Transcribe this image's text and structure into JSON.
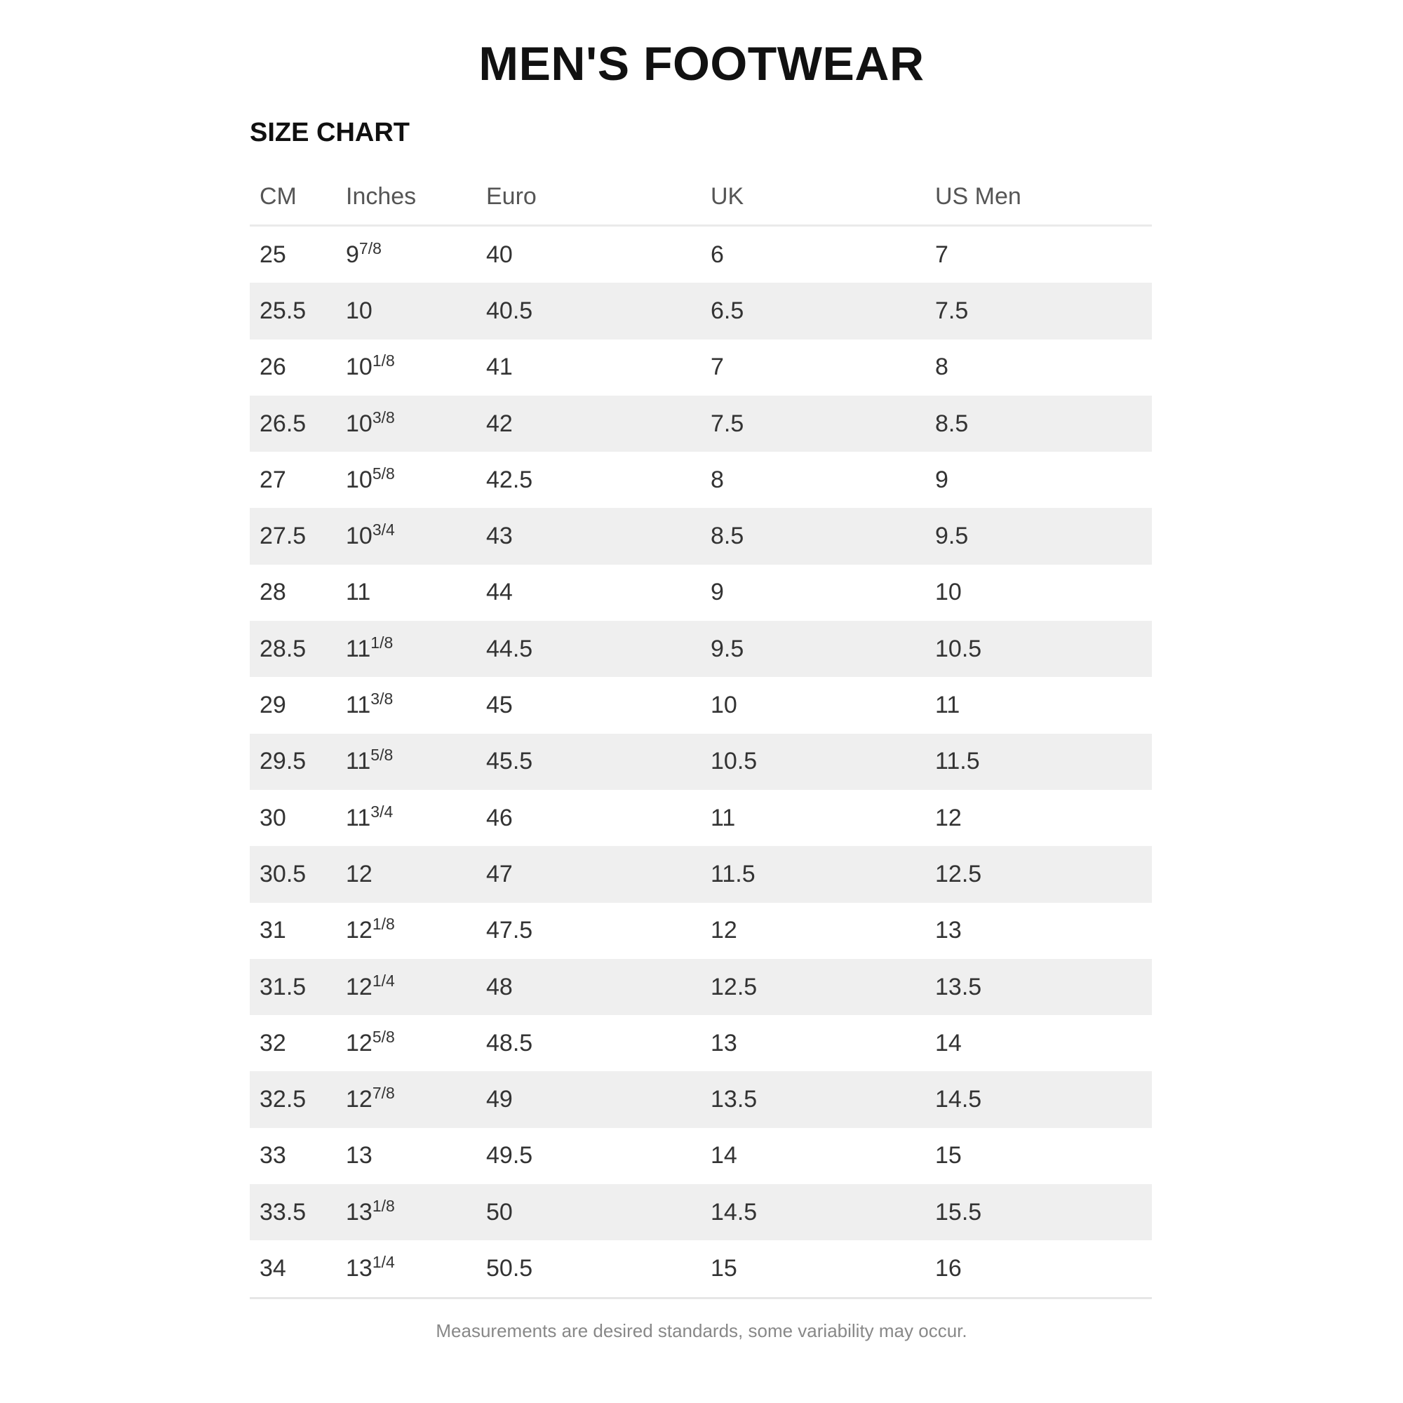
{
  "title": "MEN'S FOOTWEAR",
  "subtitle": "SIZE CHART",
  "columns": [
    "CM",
    "Inches",
    "Euro",
    "UK",
    "US Men"
  ],
  "rows": [
    {
      "cm": "25",
      "in": "9",
      "frac": "7/8",
      "euro": "40",
      "uk": "6",
      "us": "7"
    },
    {
      "cm": "25.5",
      "in": "10",
      "frac": "",
      "euro": "40.5",
      "uk": "6.5",
      "us": "7.5"
    },
    {
      "cm": "26",
      "in": "10",
      "frac": "1/8",
      "euro": "41",
      "uk": "7",
      "us": "8"
    },
    {
      "cm": "26.5",
      "in": "10",
      "frac": "3/8",
      "euro": "42",
      "uk": "7.5",
      "us": "8.5"
    },
    {
      "cm": "27",
      "in": "10",
      "frac": "5/8",
      "euro": "42.5",
      "uk": "8",
      "us": "9"
    },
    {
      "cm": "27.5",
      "in": "10",
      "frac": "3/4",
      "euro": "43",
      "uk": "8.5",
      "us": "9.5"
    },
    {
      "cm": "28",
      "in": "11",
      "frac": "",
      "euro": "44",
      "uk": "9",
      "us": "10"
    },
    {
      "cm": "28.5",
      "in": "11",
      "frac": "1/8",
      "euro": "44.5",
      "uk": "9.5",
      "us": "10.5"
    },
    {
      "cm": "29",
      "in": "11",
      "frac": "3/8",
      "euro": "45",
      "uk": "10",
      "us": "11"
    },
    {
      "cm": "29.5",
      "in": "11",
      "frac": "5/8",
      "euro": "45.5",
      "uk": "10.5",
      "us": "11.5"
    },
    {
      "cm": "30",
      "in": "11",
      "frac": "3/4",
      "euro": "46",
      "uk": "11",
      "us": "12"
    },
    {
      "cm": "30.5",
      "in": "12",
      "frac": "",
      "euro": "47",
      "uk": "11.5",
      "us": "12.5"
    },
    {
      "cm": "31",
      "in": "12",
      "frac": "1/8",
      "euro": "47.5",
      "uk": "12",
      "us": "13"
    },
    {
      "cm": "31.5",
      "in": "12",
      "frac": "1/4",
      "euro": "48",
      "uk": "12.5",
      "us": "13.5"
    },
    {
      "cm": "32",
      "in": "12",
      "frac": "5/8",
      "euro": "48.5",
      "uk": "13",
      "us": "14"
    },
    {
      "cm": "32.5",
      "in": "12",
      "frac": "7/8",
      "euro": "49",
      "uk": "13.5",
      "us": "14.5"
    },
    {
      "cm": "33",
      "in": "13",
      "frac": "",
      "euro": "49.5",
      "uk": "14",
      "us": "15"
    },
    {
      "cm": "33.5",
      "in": "13",
      "frac": "1/8",
      "euro": "50",
      "uk": "14.5",
      "us": "15.5"
    },
    {
      "cm": "34",
      "in": "13",
      "frac": "1/4",
      "euro": "50.5",
      "uk": "15",
      "us": "16"
    }
  ],
  "footnote": "Measurements are desired standards, some variability may occur.",
  "colors": {
    "stripe": "#efefef",
    "text": "#333333",
    "header": "#555555"
  }
}
